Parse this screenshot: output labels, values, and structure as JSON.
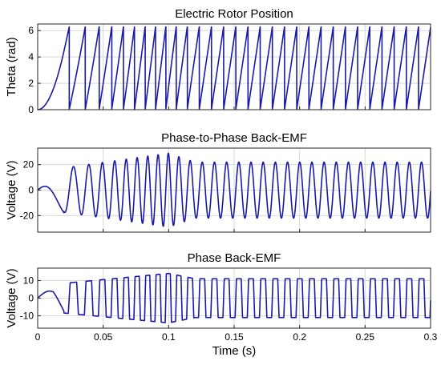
{
  "chart_data": [
    {
      "type": "line",
      "title": "Electric Rotor Position",
      "ylabel": "Theta (rad)",
      "xlabel": "",
      "xlim": [
        0,
        0.3
      ],
      "ylim": [
        0,
        6.5
      ],
      "yticks": [
        0,
        2,
        4,
        6
      ],
      "ytick_labels": [
        "0",
        "2",
        "4",
        "6"
      ],
      "xticks": [
        0,
        0.05,
        0.1,
        0.15,
        0.2,
        0.25,
        0.3
      ],
      "xtick_labels": [],
      "grid": true,
      "signal": "sawtooth",
      "amplitude": 6.2832,
      "first_wrap_time": 0.021,
      "steady_period": 0.0093,
      "series_color": "#1a1aa8",
      "series": [
        {
          "values_description_free": true,
          "x_start": 0,
          "x_end": 0.3
        }
      ]
    },
    {
      "type": "line",
      "title": "Phase-to-Phase Back-EMF",
      "ylabel": "Voltage (V)",
      "xlabel": "",
      "xlim": [
        0,
        0.3
      ],
      "ylim": [
        -33,
        33
      ],
      "yticks": [
        -20,
        0,
        20
      ],
      "ytick_labels": [
        "-20",
        "0",
        "20"
      ],
      "xticks": [
        0,
        0.05,
        0.1,
        0.15,
        0.2,
        0.25,
        0.3
      ],
      "xtick_labels": [],
      "grid": true,
      "signal": "sine",
      "peak_at_0_1s": 29,
      "steady_amplitude": 22,
      "steady_period": 0.0093,
      "series_color": "#1a1aa8"
    },
    {
      "type": "line",
      "title": "Phase Back-EMF",
      "ylabel": "Voltage (V)",
      "xlabel": "Time (s)",
      "xlim": [
        0,
        0.3
      ],
      "ylim": [
        -17,
        17
      ],
      "yticks": [
        -10,
        0,
        10
      ],
      "ytick_labels": [
        "-10",
        "0",
        "10"
      ],
      "xticks": [
        0,
        0.05,
        0.1,
        0.15,
        0.2,
        0.25,
        0.3
      ],
      "xtick_labels": [
        "0",
        "0.05",
        "0.1",
        "0.15",
        "0.2",
        "0.25",
        "0.3"
      ],
      "grid": true,
      "signal": "trapezoid",
      "peak_at_0_1s": 14,
      "steady_amplitude": 11,
      "steady_period": 0.0093,
      "series_color": "#1a1aa8"
    }
  ]
}
